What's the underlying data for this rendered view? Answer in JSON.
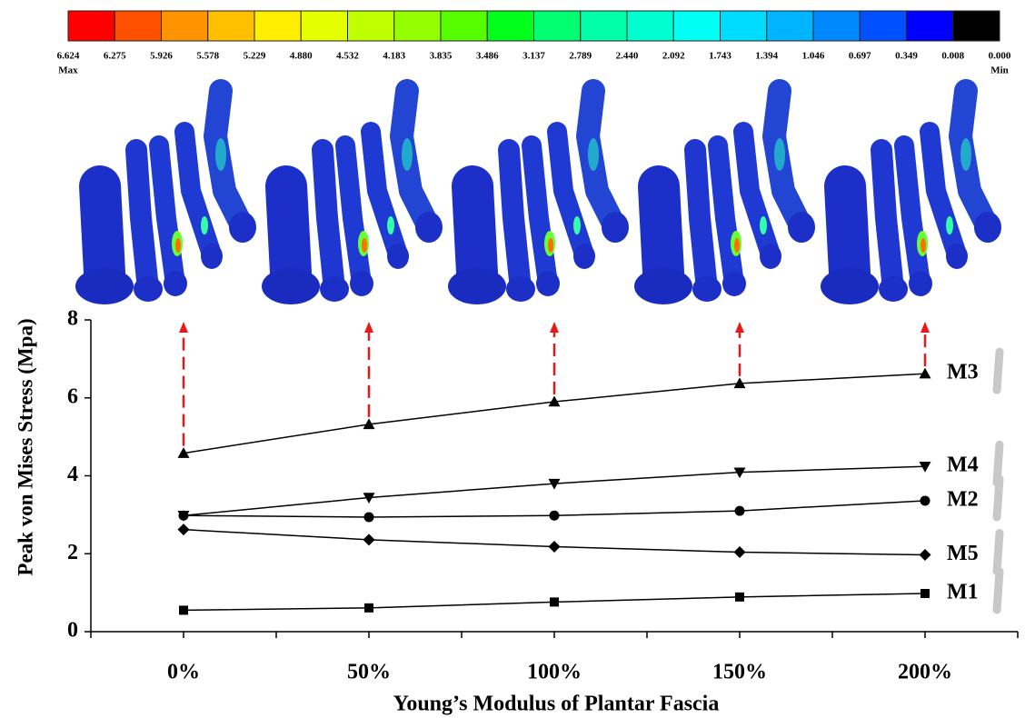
{
  "colorbar": {
    "colors": [
      "#ff0000",
      "#ff5000",
      "#ff9400",
      "#ffc000",
      "#ffee00",
      "#e4ff00",
      "#c0ff00",
      "#94ff00",
      "#55ff00",
      "#00ff1a",
      "#00ff70",
      "#00ffa8",
      "#00ffd0",
      "#00fff4",
      "#00dcff",
      "#00b4ff",
      "#0088ff",
      "#0050ff",
      "#0000ff",
      "#000000"
    ],
    "ticks": [
      6.624,
      6.275,
      5.926,
      5.578,
      5.229,
      {
        "value": 4.88,
        "label": "4.880"
      },
      4.532,
      4.183,
      3.835,
      3.486,
      3.137,
      2.789,
      {
        "value": 2.44,
        "label": "2.440"
      },
      2.092,
      1.743,
      1.394,
      1.046,
      0.697,
      0.349,
      0.008,
      {
        "value": 0,
        "label": "0.000"
      }
    ],
    "max_label": "Max",
    "min_label": "Min"
  },
  "chart_data": {
    "type": "line",
    "xlabel": "Young’s Modulus of Plantar Fascia",
    "ylabel": "Peak von Mises Stress (Mpa)",
    "categories": [
      "0%",
      "50%",
      "100%",
      "150%",
      "200%"
    ],
    "ylim": [
      0,
      8
    ],
    "yticks": [
      0,
      2,
      4,
      6,
      8
    ],
    "series": [
      {
        "name": "M3",
        "color": "#000000",
        "marker": "triangle",
        "values": [
          4.58,
          5.32,
          5.9,
          6.37,
          6.62
        ]
      },
      {
        "name": "M4",
        "color": "#000000",
        "marker": "triangle-down",
        "values": [
          2.98,
          3.44,
          3.8,
          4.09,
          4.24
        ]
      },
      {
        "name": "M2",
        "color": "#000000",
        "marker": "circle",
        "values": [
          2.98,
          2.94,
          2.98,
          3.1,
          3.36
        ]
      },
      {
        "name": "M5",
        "color": "#000000",
        "marker": "diamond",
        "values": [
          2.62,
          2.36,
          2.18,
          2.04,
          1.97
        ]
      },
      {
        "name": "M1",
        "color": "#000000",
        "marker": "square",
        "values": [
          0.55,
          0.61,
          0.76,
          0.89,
          0.98
        ]
      }
    ]
  }
}
